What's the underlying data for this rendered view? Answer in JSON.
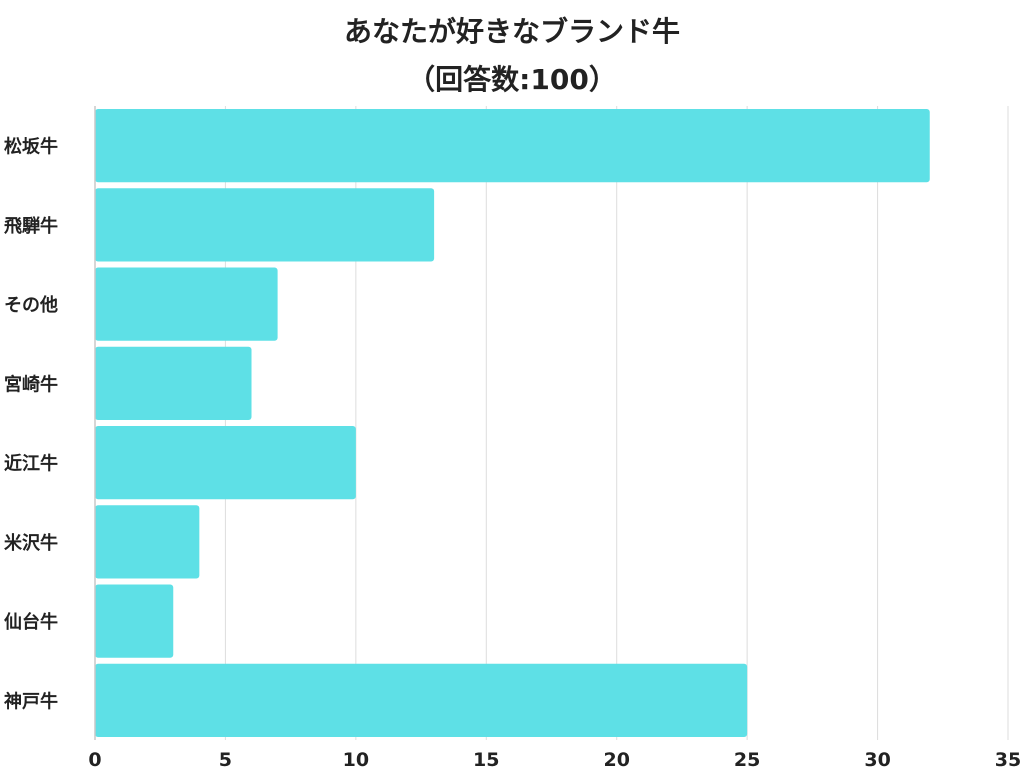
{
  "chart_data": {
    "type": "bar",
    "orientation": "horizontal",
    "title": "あなたが好きなブランド牛",
    "subtitle": "（回答数:100）",
    "categories": [
      "松坂牛",
      "飛騨牛",
      "その他",
      "宮崎牛",
      "近江牛",
      "米沢牛",
      "仙台牛",
      "神戸牛"
    ],
    "values": [
      32,
      13,
      7,
      6,
      10,
      4,
      3,
      25
    ],
    "xlim": [
      0,
      35
    ],
    "xticks": [
      0,
      5,
      10,
      15,
      20,
      25,
      30,
      35
    ],
    "xlabel": "",
    "ylabel": "",
    "grid": "vertical",
    "bar_color": "#5ee0e6",
    "grid_color": "#dddddd",
    "axis_color": "#c8c8c8"
  }
}
